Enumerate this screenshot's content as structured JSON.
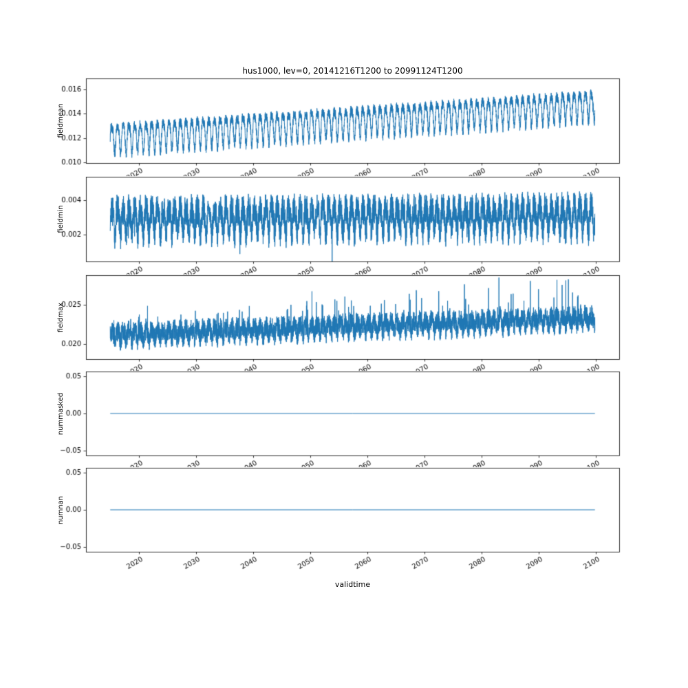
{
  "figure": {
    "title": "hus1000, lev=0, 20141216T1200 to 20991124T1200",
    "xlabel": "validtime",
    "line_color": "#1f77b4",
    "background": "#ffffff",
    "axis_color": "#000000"
  },
  "x_axis": {
    "xlim": [
      2010.71,
      2104.15
    ],
    "ticks": [
      2020,
      2030,
      2040,
      2050,
      2060,
      2070,
      2080,
      2090,
      2100
    ],
    "tick_labels": [
      "2020",
      "2030",
      "2040",
      "2050",
      "2060",
      "2070",
      "2080",
      "2090",
      "2100"
    ],
    "tick_rotation_deg": 30
  },
  "chart_data": [
    {
      "type": "line",
      "name": "fieldmean",
      "ylabel": "fieldmean",
      "x_range": [
        2014.96,
        2099.9
      ],
      "ylim": [
        0.00995,
        0.0169
      ],
      "yticks": [
        0.01,
        0.012,
        0.014,
        0.016
      ],
      "ytick_labels": [
        "0.010",
        "0.012",
        "0.014",
        "0.016"
      ],
      "signal": {
        "kind": "seasonal",
        "seed": 101,
        "base_start": 0.01205,
        "base_end": 0.01475,
        "seasonal_amp": 0.0011,
        "harmonic_amp": 0.0003,
        "noise": 0.0004,
        "spike_prob": 0,
        "spike_mag": 0,
        "spike_sign": 1
      }
    },
    {
      "type": "line",
      "name": "fieldmin",
      "ylabel": "fieldmin",
      "x_range": [
        2014.96,
        2099.9
      ],
      "ylim": [
        0.0004,
        0.0054
      ],
      "yticks": [
        0.002,
        0.004
      ],
      "ytick_labels": [
        "0.002",
        "0.004"
      ],
      "signal": {
        "kind": "seasonal",
        "seed": 202,
        "base_start": 0.0029,
        "base_end": 0.0031,
        "seasonal_amp": 0.0007,
        "harmonic_amp": 0.0002,
        "noise": 0.0009,
        "spike_prob": 0.004,
        "spike_mag": 0.0013,
        "spike_sign": -1
      }
    },
    {
      "type": "line",
      "name": "fieldmax",
      "ylabel": "fieldmax",
      "x_range": [
        2014.96,
        2099.9
      ],
      "ylim": [
        0.0181,
        0.0288
      ],
      "yticks": [
        0.02,
        0.025
      ],
      "ytick_labels": [
        "0.020",
        "0.025"
      ],
      "signal": {
        "kind": "seasonal",
        "seed": 303,
        "base_start": 0.02115,
        "base_end": 0.0233,
        "seasonal_amp": 0.0006,
        "harmonic_amp": 0.0002,
        "noise": 0.0013,
        "spike_prob": 0.02,
        "spike_mag": 0.0024,
        "spike_sign": 1
      }
    },
    {
      "type": "line",
      "name": "nummasked",
      "ylabel": "nummasked",
      "x_range": [
        2014.96,
        2099.9
      ],
      "ylim": [
        -0.056,
        0.056
      ],
      "yticks": [
        -0.05,
        0,
        0.05
      ],
      "ytick_labels": [
        "−0.05",
        "0.00",
        "0.05"
      ],
      "signal": {
        "kind": "constant",
        "value": 0
      }
    },
    {
      "type": "line",
      "name": "numnan",
      "ylabel": "numnan",
      "x_range": [
        2014.96,
        2099.9
      ],
      "ylim": [
        -0.056,
        0.056
      ],
      "yticks": [
        -0.05,
        0,
        0.05
      ],
      "ytick_labels": [
        "−0.05",
        "0.00",
        "0.05"
      ],
      "signal": {
        "kind": "constant",
        "value": 0
      }
    }
  ]
}
